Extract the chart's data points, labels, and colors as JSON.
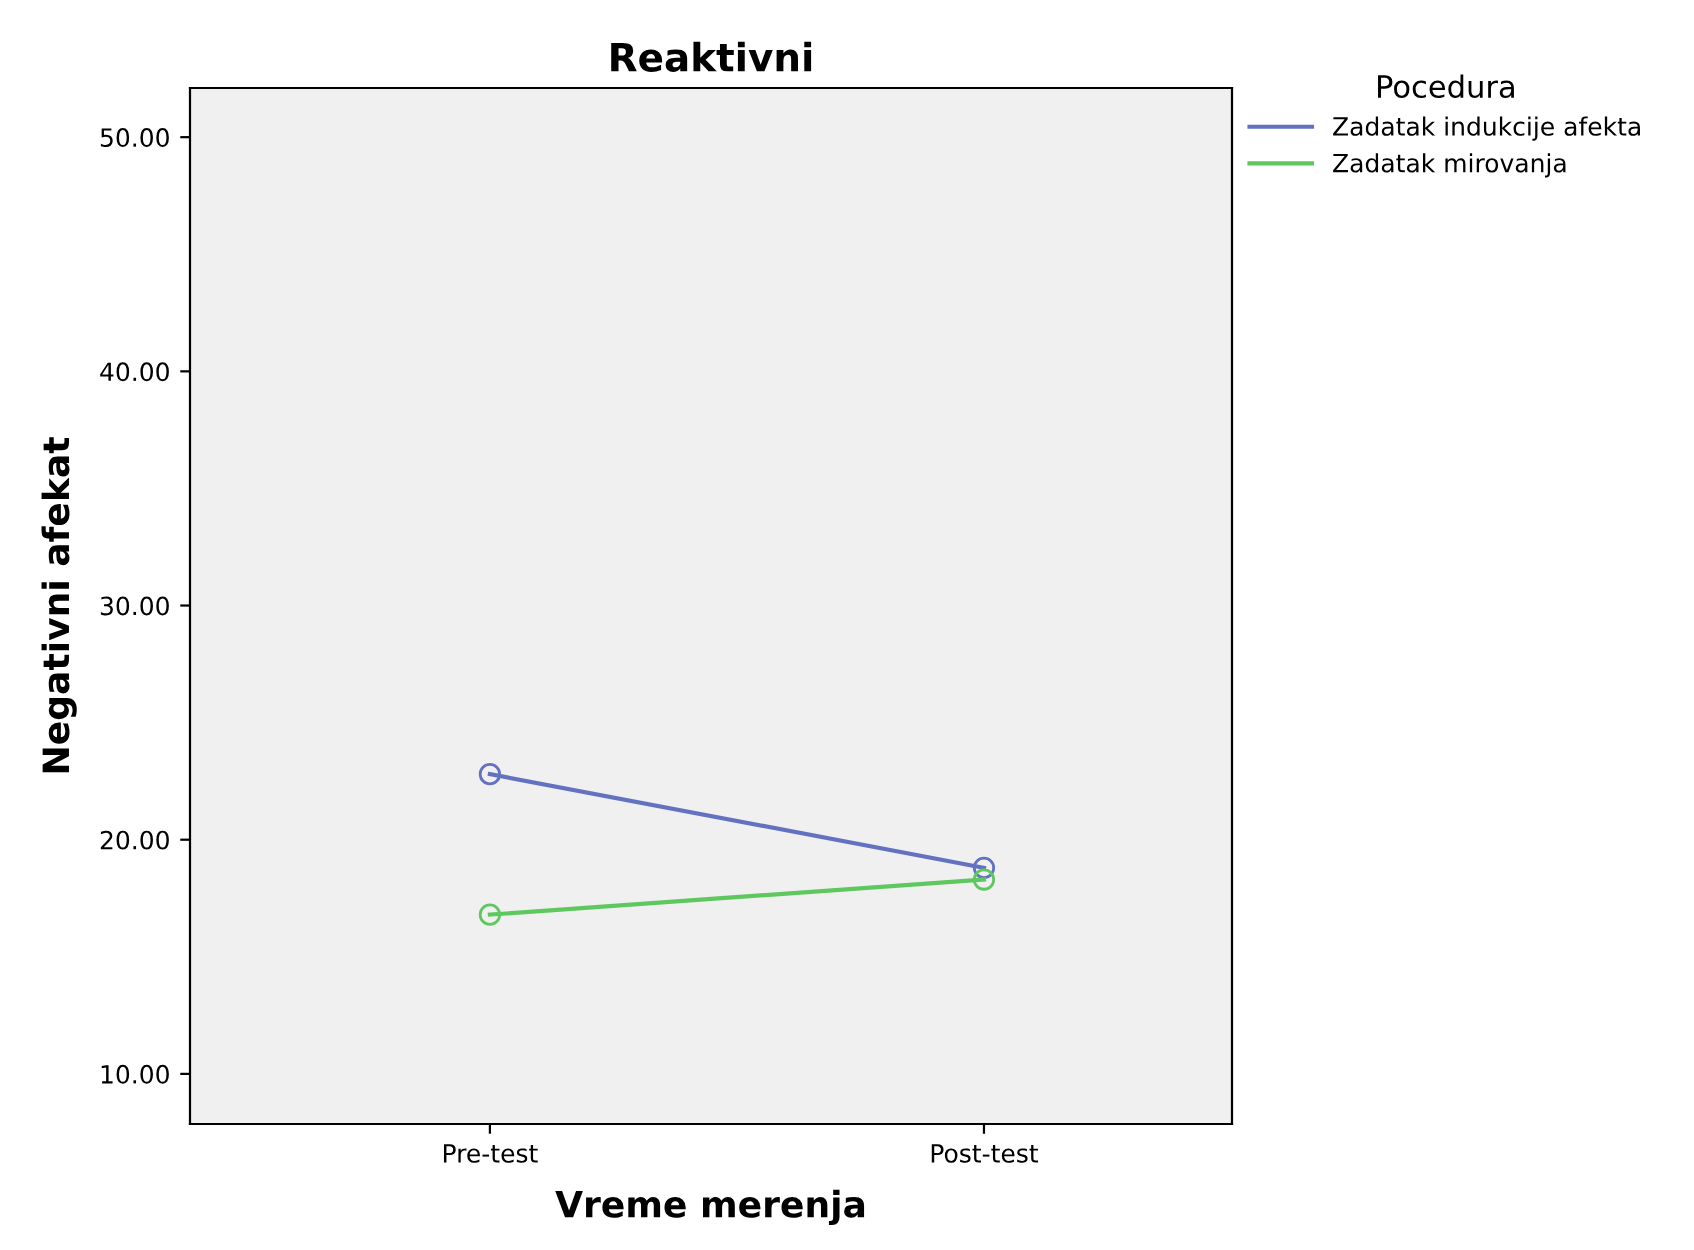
{
  "chart_data": {
    "type": "line",
    "title": "Reaktivni",
    "xlabel": "Vreme merenja",
    "ylabel": "Negativni afekat",
    "legend_title": "Pocedura",
    "categories": [
      "Pre-test",
      "Post-test"
    ],
    "series": [
      {
        "name": "Zadatak indukcije afekta",
        "color": "#6272c0",
        "values": [
          22.8,
          18.8
        ]
      },
      {
        "name": "Zadatak mirovanja",
        "color": "#5ec85e",
        "values": [
          16.8,
          18.3
        ]
      }
    ],
    "ylim": [
      7.86,
      52.1
    ],
    "yticks": [
      {
        "value": 10,
        "label": "10.00"
      },
      {
        "value": 20,
        "label": "20.00"
      },
      {
        "value": 30,
        "label": "30.00"
      },
      {
        "value": 40,
        "label": "40.00"
      },
      {
        "value": 50,
        "label": "50.00"
      }
    ],
    "marker": "circle",
    "line_style": "solid",
    "legend": "top right",
    "grid": false
  }
}
